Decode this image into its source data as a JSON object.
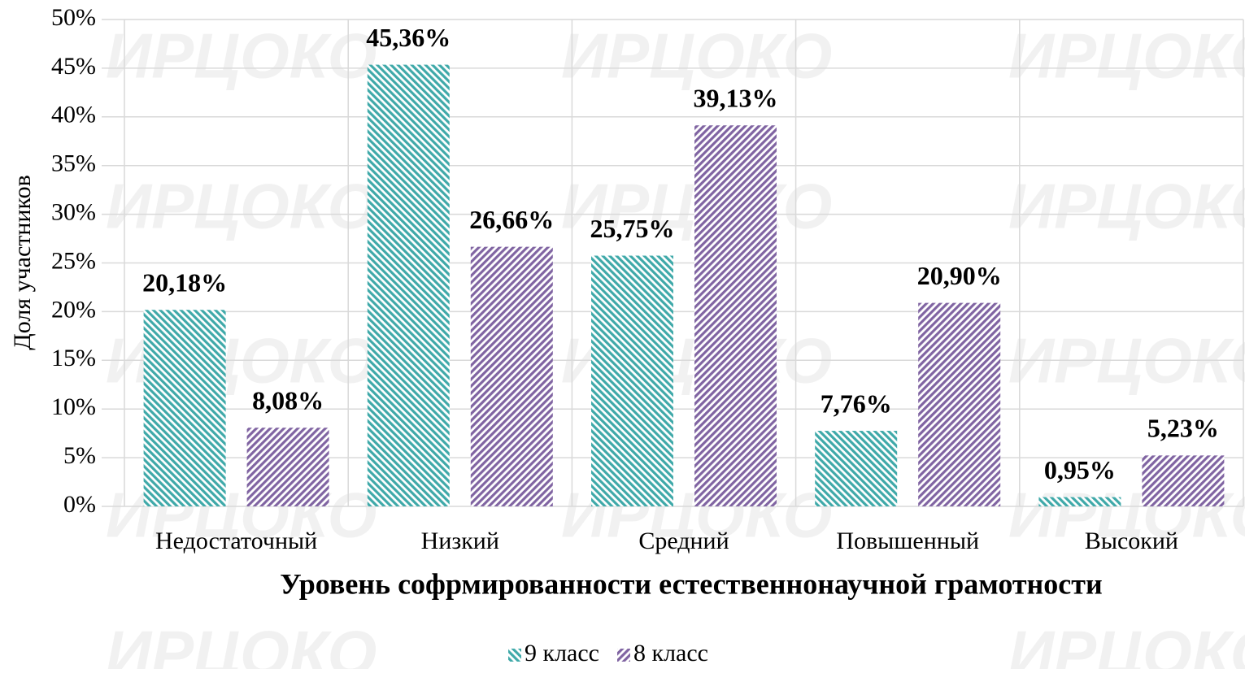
{
  "chart_data": {
    "type": "bar",
    "watermark": "ИРЦОКО",
    "x_label": "Уровень софрмированности естественнонаучной грамотности",
    "y_label": "Доля участников",
    "categories": [
      "Недостаточный",
      "Низкий",
      "Средний",
      "Повышенный",
      "Высокий"
    ],
    "series": [
      {
        "name": "9 класс",
        "color": "#3fa9a9",
        "values": [
          20.18,
          45.36,
          25.75,
          7.76,
          0.95
        ],
        "value_labels": [
          "20,18%",
          "45,36%",
          "25,75%",
          "7,76%",
          "0,95%"
        ]
      },
      {
        "name": "8 класс",
        "color": "#8064a2",
        "values": [
          8.08,
          26.66,
          39.13,
          20.9,
          5.23
        ],
        "value_labels": [
          "8,08%",
          "26,66%",
          "39,13%",
          "20,90%",
          "5,23%"
        ]
      }
    ],
    "ylim": [
      0,
      50
    ],
    "yticks": [
      {
        "value": 0,
        "label": "0%"
      },
      {
        "value": 5,
        "label": "5%"
      },
      {
        "value": 10,
        "label": "10%"
      },
      {
        "value": 15,
        "label": "15%"
      },
      {
        "value": 20,
        "label": "20%"
      },
      {
        "value": 25,
        "label": "25%"
      },
      {
        "value": 30,
        "label": "30%"
      },
      {
        "value": 35,
        "label": "35%"
      },
      {
        "value": 40,
        "label": "40%"
      },
      {
        "value": 45,
        "label": "45%"
      },
      {
        "value": 50,
        "label": "50%"
      }
    ],
    "grid": true
  }
}
